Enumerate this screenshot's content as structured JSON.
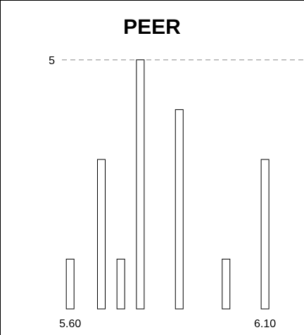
{
  "chart_data": {
    "type": "bar",
    "title": "PEER",
    "xlabel": "",
    "ylabel": "",
    "x": [
      5.6,
      5.68,
      5.73,
      5.78,
      5.88,
      6.0,
      6.1
    ],
    "values": [
      1,
      3,
      1,
      5,
      4,
      1,
      3
    ],
    "xlim": [
      5.42,
      6.2
    ],
    "ylim": [
      0,
      5.5
    ],
    "x_tick_labels": [
      {
        "value": 5.6,
        "label": "5.60"
      },
      {
        "value": 6.1,
        "label": "6.10"
      }
    ],
    "reference_line": {
      "value": 5,
      "label": "5",
      "style": "dashed"
    },
    "grid": false,
    "legend": "none",
    "bar_fill": "#ffffff",
    "bar_stroke": "#000000",
    "reference_line_color": "#888888"
  }
}
